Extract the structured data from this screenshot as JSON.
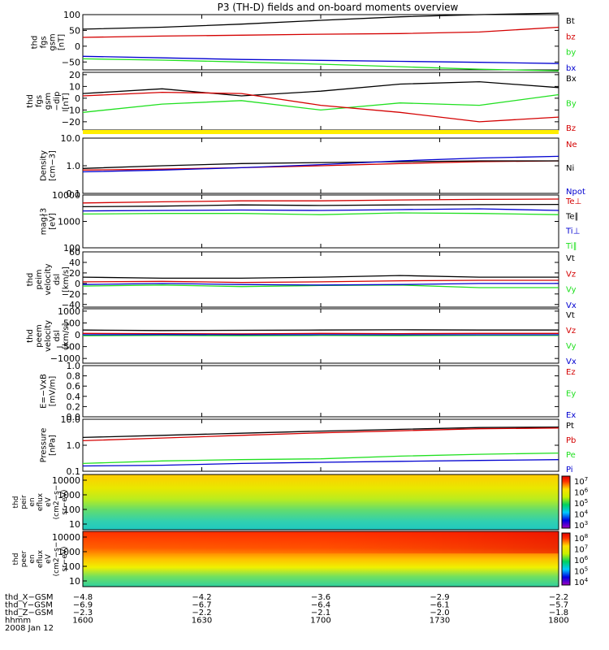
{
  "title": "P3 (TH-D) fields and on-board moments overview",
  "colors": {
    "black": "#000000",
    "red": "#d40000",
    "green": "#20e020",
    "blue": "#0000d0",
    "yellow": "#ffee00"
  },
  "chart_data": {
    "type": "line",
    "x_ticks": [
      "1600",
      "1630",
      "1700",
      "1730",
      "1800"
    ],
    "x_range": [
      1600,
      1800
    ],
    "panels": [
      {
        "id": "fgs_gsm",
        "ylabel": [
          "thd",
          "fgs",
          "gsm",
          "[nT]"
        ],
        "ylim": [
          -75,
          100
        ],
        "log": false,
        "yticks": [
          {
            "v": 100,
            "t": "100"
          },
          {
            "v": 50,
            "t": "50"
          },
          {
            "v": 0,
            "t": "0"
          },
          {
            "v": -50,
            "t": "−50"
          }
        ],
        "series": [
          {
            "name": "Bt",
            "color": "black",
            "values": [
              54,
              60,
              70,
              82,
              93,
              100,
              105
            ]
          },
          {
            "name": "bz",
            "color": "red",
            "values": [
              28,
              32,
              35,
              38,
              40,
              45,
              60
            ]
          },
          {
            "name": "by",
            "color": "green",
            "values": [
              -40,
              -44,
              -50,
              -57,
              -65,
              -73,
              -78
            ]
          },
          {
            "name": "bx",
            "color": "blue",
            "values": [
              -32,
              -37,
              -42,
              -45,
              -48,
              -51,
              -55
            ]
          }
        ]
      },
      {
        "id": "fgs_dsl",
        "ylabel": [
          "thd",
          "fgs",
          "gsm",
          "−dip",
          "[nT]"
        ],
        "ylim": [
          -27,
          22
        ],
        "log": false,
        "yticks": [
          {
            "v": 20,
            "t": "20"
          },
          {
            "v": 10,
            "t": "10"
          },
          {
            "v": 0,
            "t": "0"
          },
          {
            "v": -10,
            "t": "−10"
          },
          {
            "v": -20,
            "t": "−20"
          }
        ],
        "series": [
          {
            "name": "Bx",
            "color": "black",
            "values": [
              4,
              8,
              2,
              6,
              12,
              14,
              9
            ]
          },
          {
            "name": "By",
            "color": "green",
            "values": [
              -12,
              -5,
              -2,
              -10,
              -4,
              -6,
              3
            ]
          },
          {
            "name": "Bz",
            "color": "red",
            "values": [
              2,
              5,
              4,
              -6,
              -12,
              -20,
              -16
            ]
          }
        ]
      },
      {
        "id": "density",
        "ylabel": [
          "Density",
          "[cm−3]"
        ],
        "ylim": [
          0.1,
          10
        ],
        "log": true,
        "yticks": [
          {
            "v": 10,
            "t": "10.0"
          },
          {
            "v": 1,
            "t": "1.0"
          },
          {
            "v": 0.1,
            "t": "0.1"
          }
        ],
        "series": [
          {
            "name": "Ne",
            "color": "red",
            "values": [
              0.7,
              0.75,
              0.85,
              1.0,
              1.2,
              1.4,
              1.5
            ]
          },
          {
            "name": "Ni",
            "color": "black",
            "values": [
              0.8,
              1.0,
              1.2,
              1.3,
              1.4,
              1.5,
              1.5
            ]
          },
          {
            "name": "Npot",
            "color": "blue",
            "values": [
              0.6,
              0.7,
              0.85,
              1.1,
              1.5,
              1.9,
              2.2
            ]
          }
        ]
      },
      {
        "id": "temperature",
        "ylabel": [
          "mag∤3",
          "[eV]"
        ],
        "ylim": [
          100,
          10000
        ],
        "log": true,
        "yticks": [
          {
            "v": 10000,
            "t": "10000"
          },
          {
            "v": 1000,
            "t": "1000"
          },
          {
            "v": 100,
            "t": "100"
          }
        ],
        "series": [
          {
            "name": "Te⊥",
            "color": "red",
            "values": [
              5000,
              5500,
              6000,
              6000,
              6500,
              6800,
              7000
            ]
          },
          {
            "name": "Te∥",
            "color": "black",
            "values": [
              3600,
              3800,
              4200,
              4000,
              4200,
              4300,
              4400
            ]
          },
          {
            "name": "Ti⊥",
            "color": "blue",
            "values": [
              2500,
              2600,
              2700,
              2600,
              2800,
              3000,
              2600
            ]
          },
          {
            "name": "Ti∥",
            "color": "green",
            "values": [
              1900,
              2000,
              2000,
              1800,
              2100,
              2000,
              1800
            ]
          }
        ]
      },
      {
        "id": "peim_velocity",
        "ylabel": [
          "thd",
          "peim",
          "velocity",
          "dsl",
          "[km/s]"
        ],
        "ylim": [
          -45,
          60
        ],
        "log": false,
        "yticks": [
          {
            "v": 60,
            "t": "60"
          },
          {
            "v": 40,
            "t": "40"
          },
          {
            "v": 20,
            "t": "20"
          },
          {
            "v": 0,
            "t": "0"
          },
          {
            "v": -20,
            "t": "−20"
          },
          {
            "v": -40,
            "t": "−40"
          }
        ],
        "series": [
          {
            "name": "Vt",
            "color": "black",
            "values": [
              12,
              10,
              10,
              12,
              15,
              12,
              12
            ]
          },
          {
            "name": "Vz",
            "color": "red",
            "values": [
              3,
              4,
              2,
              3,
              5,
              6,
              6
            ]
          },
          {
            "name": "Vy",
            "color": "green",
            "values": [
              -5,
              -3,
              -6,
              -4,
              -3,
              -8,
              -8
            ]
          },
          {
            "name": "Vx",
            "color": "blue",
            "values": [
              -2,
              0,
              -2,
              -3,
              -2,
              0,
              0
            ]
          }
        ]
      },
      {
        "id": "peem_velocity",
        "ylabel": [
          "thd",
          "peem",
          "velocity",
          "dsl",
          "[km/s]"
        ],
        "ylim": [
          -1200,
          1100
        ],
        "log": false,
        "yticks": [
          {
            "v": 1000,
            "t": "1000"
          },
          {
            "v": 500,
            "t": "500"
          },
          {
            "v": 0,
            "t": "0"
          },
          {
            "v": -500,
            "t": "−500"
          },
          {
            "v": -1000,
            "t": "−1000"
          }
        ],
        "series": [
          {
            "name": "Vt",
            "color": "black",
            "values": [
              200,
              180,
              190,
              200,
              210,
              200,
              200
            ]
          },
          {
            "name": "Vz",
            "color": "red",
            "values": [
              60,
              50,
              40,
              60,
              50,
              60,
              60
            ]
          },
          {
            "name": "Vy",
            "color": "green",
            "values": [
              -40,
              -30,
              -40,
              -30,
              -40,
              -30,
              -30
            ]
          },
          {
            "name": "Vx",
            "color": "blue",
            "values": [
              0,
              10,
              0,
              5,
              0,
              0,
              0
            ]
          }
        ]
      },
      {
        "id": "efield",
        "ylabel": [
          "E=−VxB",
          "[mV/m]"
        ],
        "ylim": [
          0,
          1
        ],
        "log": false,
        "yticks": [
          {
            "v": 1,
            "t": "1.0"
          },
          {
            "v": 0.8,
            "t": "0.8"
          },
          {
            "v": 0.6,
            "t": "0.6"
          },
          {
            "v": 0.4,
            "t": "0.4"
          },
          {
            "v": 0.2,
            "t": "0.2"
          },
          {
            "v": 0,
            "t": "0.0"
          }
        ],
        "series": [
          {
            "name": "Ez",
            "color": "red",
            "values": []
          },
          {
            "name": "Ey",
            "color": "green",
            "values": []
          },
          {
            "name": "Ex",
            "color": "blue",
            "values": []
          }
        ]
      },
      {
        "id": "pressure",
        "ylabel": [
          "Pressure",
          "[nPa]"
        ],
        "ylim": [
          0.1,
          10
        ],
        "log": true,
        "yticks": [
          {
            "v": 10,
            "t": "10.0"
          },
          {
            "v": 1,
            "t": "1.0"
          },
          {
            "v": 0.1,
            "t": "0.1"
          }
        ],
        "series": [
          {
            "name": "Pt",
            "color": "black",
            "values": [
              2.0,
              2.4,
              2.9,
              3.5,
              4.1,
              4.8,
              5.0
            ]
          },
          {
            "name": "Pb",
            "color": "red",
            "values": [
              1.5,
              1.9,
              2.4,
              3.0,
              3.6,
              4.3,
              4.6
            ]
          },
          {
            "name": "Pe",
            "color": "green",
            "values": [
              0.2,
              0.25,
              0.28,
              0.3,
              0.38,
              0.45,
              0.5
            ]
          },
          {
            "name": "Pi",
            "color": "blue",
            "values": [
              0.16,
              0.17,
              0.2,
              0.22,
              0.24,
              0.26,
              0.28
            ]
          }
        ]
      }
    ],
    "spectrograms": [
      {
        "id": "peir",
        "ylabel": [
          "thd",
          "peir",
          "en",
          "eflux",
          "eV",
          "(cm2−s−",
          "sr−eV)"
        ],
        "yticks": [
          "10000",
          "1000",
          "100",
          "10"
        ],
        "colorbar": [
          {
            "b": "10",
            "e": "7"
          },
          {
            "b": "10",
            "e": "6"
          },
          {
            "b": "10",
            "e": "5"
          },
          {
            "b": "10",
            "e": "4"
          },
          {
            "b": "10",
            "e": "3"
          }
        ]
      },
      {
        "id": "peer",
        "ylabel": [
          "thd",
          "peer",
          "en",
          "eflux",
          "eV",
          "(cm2−s−",
          "sr−eV)"
        ],
        "yticks": [
          "10000",
          "1000",
          "100",
          "10"
        ],
        "colorbar": [
          {
            "b": "10",
            "e": "8"
          },
          {
            "b": "10",
            "e": "7"
          },
          {
            "b": "10",
            "e": "6"
          },
          {
            "b": "10",
            "e": "5"
          },
          {
            "b": "10",
            "e": "4"
          }
        ]
      }
    ],
    "ephemeris": [
      {
        "label": "thd_X−GSM",
        "values": [
          "−4.8",
          "−4.2",
          "−3.6",
          "−2.9",
          "−2.2"
        ]
      },
      {
        "label": "thd_Y−GSM",
        "values": [
          "−6.9",
          "−6.7",
          "−6.4",
          "−6.1",
          "−5.7"
        ]
      },
      {
        "label": "thd_Z−GSM",
        "values": [
          "−2.3",
          "−2.2",
          "−2.1",
          "−2.0",
          "−1.8"
        ]
      },
      {
        "label": "hhmm",
        "values": [
          "1600",
          "1630",
          "1700",
          "1730",
          "1800"
        ]
      }
    ],
    "date_label": "2008 Jan 12"
  }
}
